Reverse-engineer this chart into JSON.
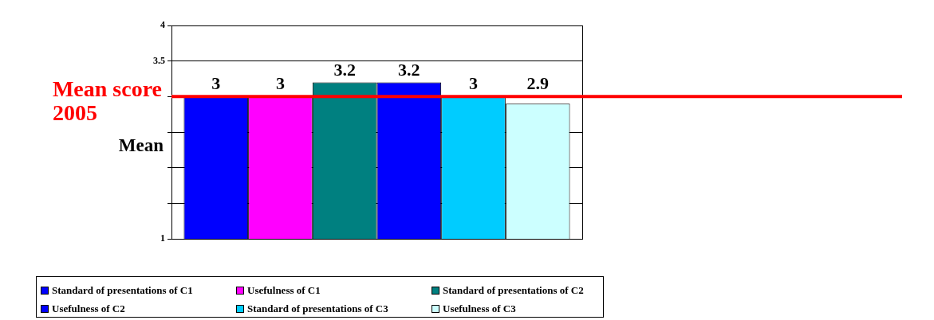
{
  "chart_data": {
    "type": "bar",
    "ylabel": "Mean",
    "categories": [
      null
    ],
    "series": [
      {
        "name": "Standard of presentations of C1",
        "color": "#0000ff",
        "values": [
          3
        ]
      },
      {
        "name": "Usefulness of C1",
        "color": "#ff00ff",
        "values": [
          3
        ]
      },
      {
        "name": "Standard of presentations of C2",
        "color": "#008080",
        "values": [
          3.2
        ]
      },
      {
        "name": "Usefulness of C2",
        "color": "#0000ff",
        "values": [
          3.2
        ]
      },
      {
        "name": "Standard of presentations of C3",
        "color": "#00ccff",
        "values": [
          3
        ]
      },
      {
        "name": "Usefulness of C3",
        "color": "#ccffff",
        "values": [
          2.9
        ]
      }
    ],
    "ylim": [
      1,
      4
    ],
    "yticks": [
      1,
      {
        "value": 1.5,
        "label": null
      },
      {
        "value": 2,
        "label": null
      },
      {
        "value": 2.5,
        "label": null
      },
      {
        "value": 3,
        "label": null
      },
      3.5,
      4
    ],
    "grid": "y",
    "legend": "bottom",
    "data_labels": true,
    "tick_labels": "y",
    "ref_lines": [
      {
        "axis": "y",
        "value": 3,
        "label": "Mean score 2005",
        "color": "#ff0000"
      }
    ]
  }
}
